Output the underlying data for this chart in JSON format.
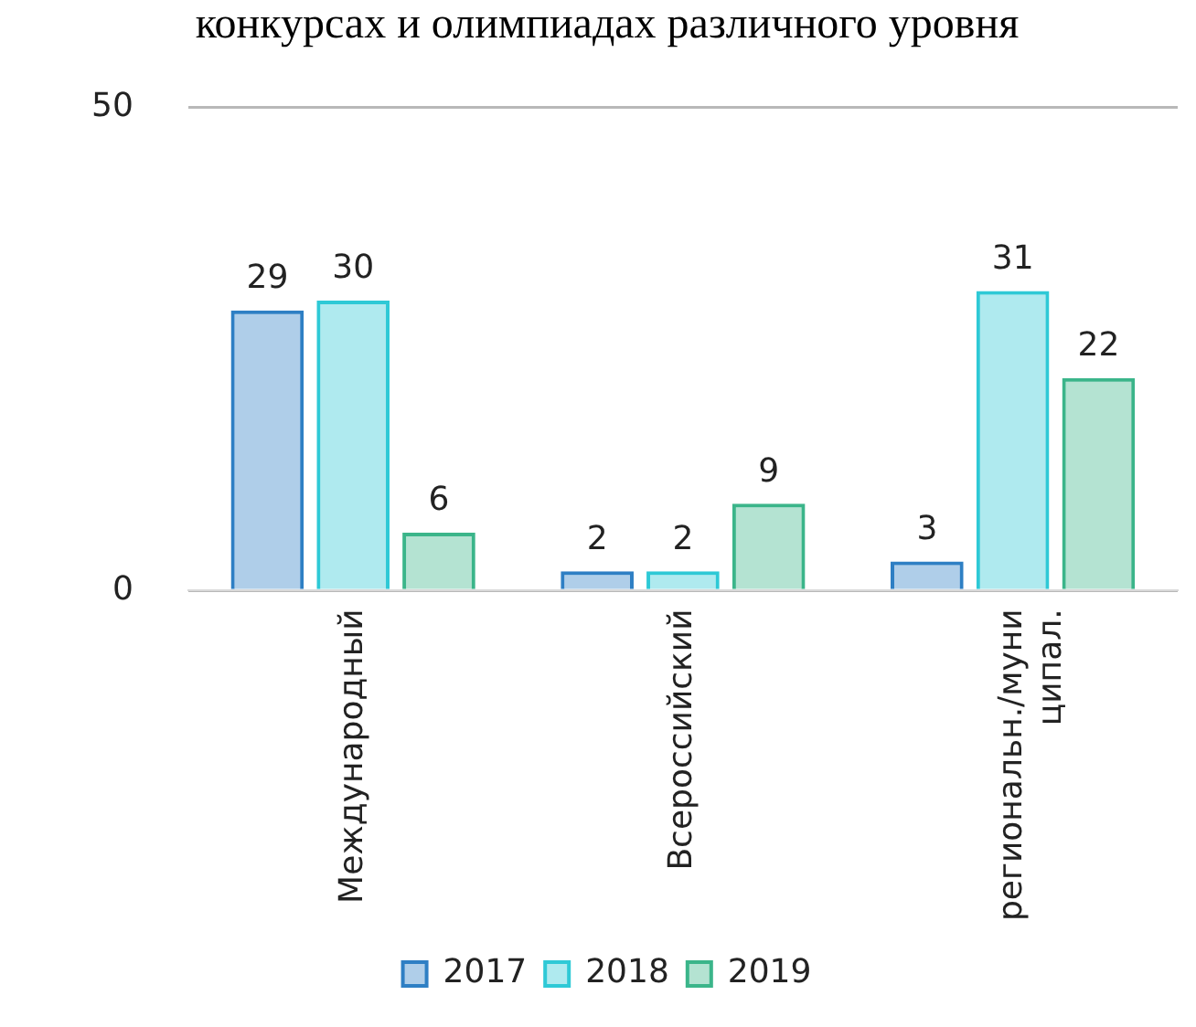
{
  "chart_data": {
    "type": "bar",
    "title": "конкурсах и олимпиадах различного уровня",
    "categories": [
      "Международный",
      "Всероссийский",
      "региональн./муниципал."
    ],
    "series": [
      {
        "name": "2017",
        "color": "#2e7fc4",
        "values": [
          29,
          2,
          3
        ]
      },
      {
        "name": "2018",
        "color": "#2ec9d6",
        "values": [
          30,
          2,
          31
        ]
      },
      {
        "name": "2019",
        "color": "#3bb58a",
        "values": [
          6,
          9,
          22
        ]
      }
    ],
    "ylim": [
      0,
      50
    ],
    "yticks": [
      0,
      50
    ],
    "grid": "y",
    "legend": "bottom",
    "data_labels": true
  }
}
